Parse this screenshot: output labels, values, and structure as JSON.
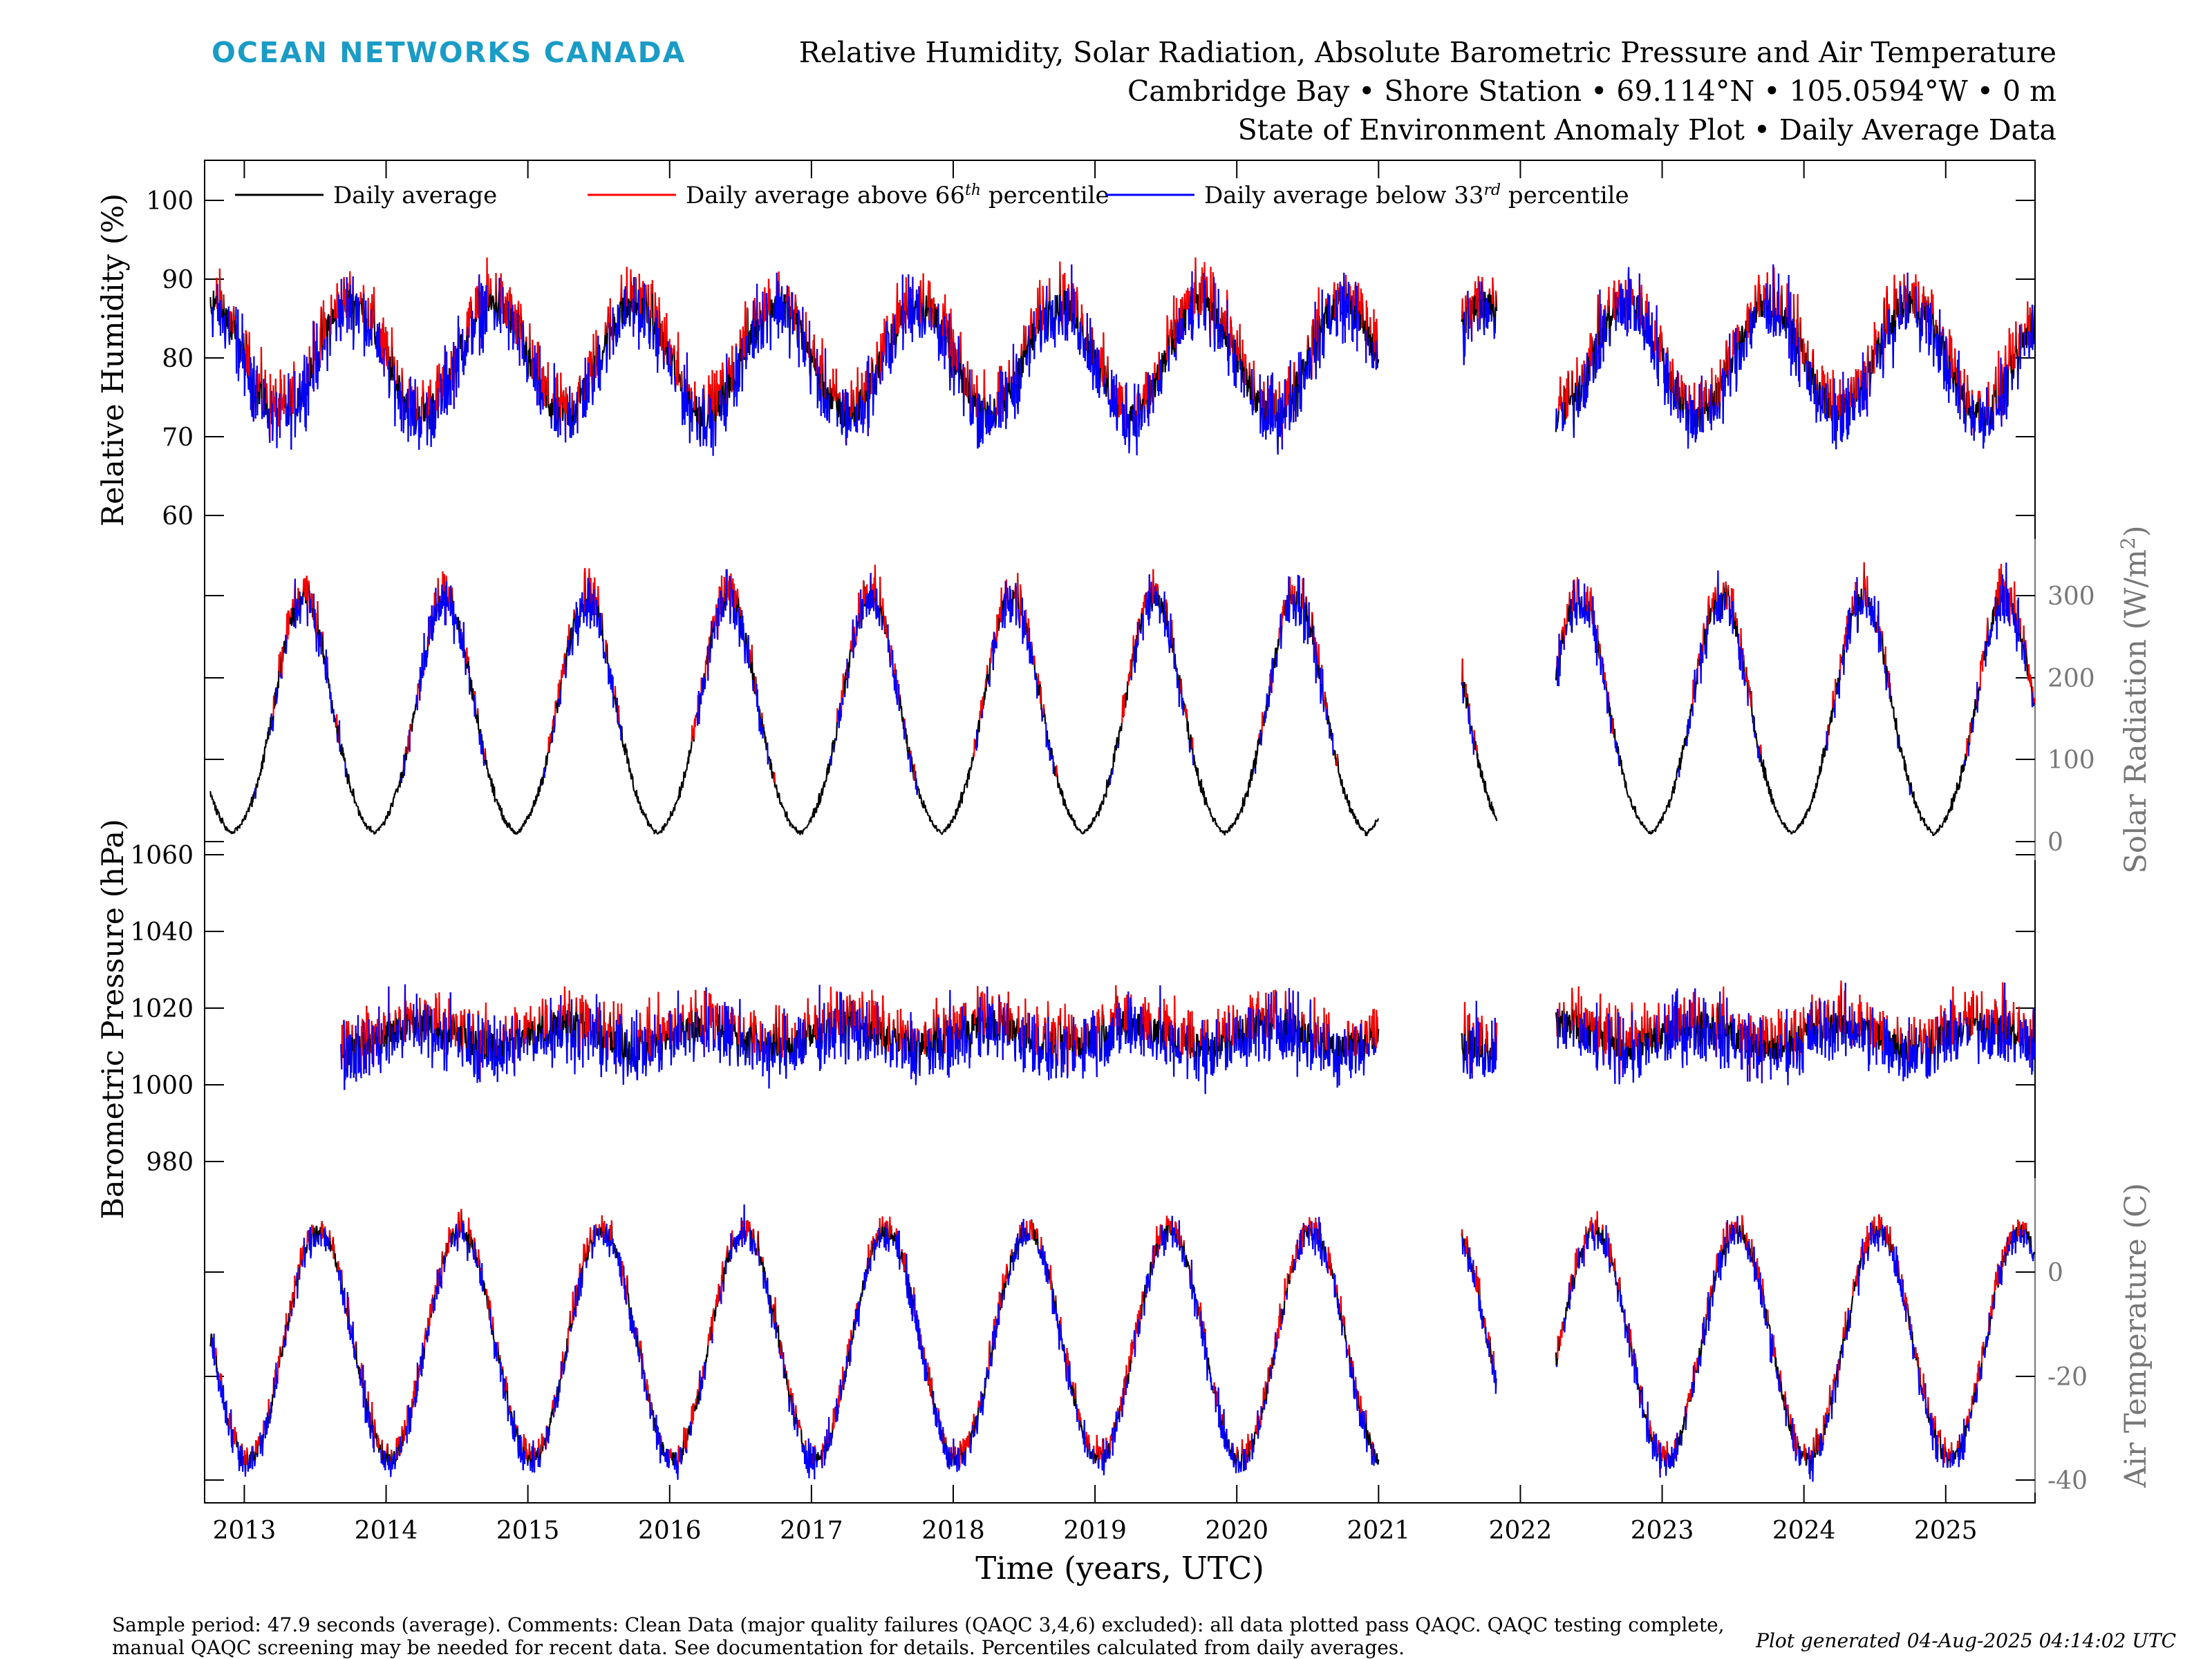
{
  "header": {
    "brand": "OCEAN NETWORKS CANADA",
    "title_lines": [
      "Relative Humidity, Solar Radiation, Absolute Barometric Pressure and Air Temperature",
      "Cambridge Bay • Shore Station • 69.114°N • 105.0594°W • 0 m",
      "State of Environment Anomaly Plot • Daily Average Data"
    ]
  },
  "footer": {
    "comment": "Sample period: 47.9 seconds (average). Comments: Clean Data (major quality failures (QAQC 3,4,6) excluded): all data plotted pass QAQC. QAQC testing complete, manual QAQC screening may be needed for recent data. See documentation for details. Percentiles calculated from daily averages.",
    "generated": "Plot generated 04-Aug-2025 04:14:02 UTC"
  },
  "chart_data": {
    "type": "line",
    "x_axis": {
      "label": "Time (years, UTC)",
      "ticks": [
        "2013",
        "2014",
        "2015",
        "2016",
        "2017",
        "2018",
        "2019",
        "2020",
        "2021",
        "2022",
        "2023",
        "2024",
        "2025"
      ],
      "range": [
        "2012-09",
        "2025-08"
      ]
    },
    "legend": {
      "placement": "top-left",
      "entries": [
        {
          "label": "Daily average",
          "color": "#000000"
        },
        {
          "label": "Daily average above 66",
          "sup": "th",
          "suffix": " percentile",
          "color": "#ff0000"
        },
        {
          "label": "Daily average below 33",
          "sup": "rd",
          "suffix": " percentile",
          "color": "#0000ff"
        }
      ]
    },
    "colors": {
      "average": "#000000",
      "above": "#ff0000",
      "below": "#0000ff"
    },
    "data_gaps": [
      [
        "2021-01",
        "2021-08"
      ],
      [
        "2021-11",
        "2022-04"
      ]
    ],
    "panels": [
      {
        "id": "rh",
        "ylabel": "Relative Humidity (%)",
        "ylabel_side": "left",
        "ylim": [
          60,
          105
        ],
        "yticks": [
          "60",
          "70",
          "80",
          "90",
          "100"
        ],
        "seasonal": {
          "mean": 80,
          "amplitude": 7,
          "peak_month": 10,
          "noise": 4
        },
        "series": [
          {
            "name": "Daily average"
          }
        ]
      },
      {
        "id": "solar",
        "ylabel": "Solar Radiation (W/m²)",
        "ylabel_side": "right",
        "ylim": [
          0,
          390
        ],
        "yticks": [
          "0",
          "100",
          "200",
          "300"
        ],
        "seasonal": {
          "peak": 300,
          "peak_month": 6,
          "width_months": 2.3,
          "noise": 30
        },
        "series": [
          {
            "name": "Daily average"
          }
        ]
      },
      {
        "id": "pressure",
        "ylabel": "Barometric Pressure (hPa)",
        "ylabel_side": "left",
        "ylim": [
          975,
          1062
        ],
        "yticks": [
          "980",
          "1000",
          "1020",
          "1040",
          "1060"
        ],
        "seasonal": {
          "mean": 1013,
          "amplitude": 3,
          "peak_month": 4,
          "noise": 8
        },
        "series": [
          {
            "name": "Daily average"
          }
        ]
      },
      {
        "id": "temp",
        "ylabel": "Air Temperature (C)",
        "ylabel_side": "right",
        "ylim": [
          -42,
          18
        ],
        "yticks": [
          "-40",
          "-20",
          "0"
        ],
        "seasonal": {
          "mean": -14,
          "amplitude": 22,
          "peak_month": 7.3,
          "noise": 3
        },
        "series": [
          {
            "name": "Daily average"
          }
        ]
      }
    ]
  }
}
